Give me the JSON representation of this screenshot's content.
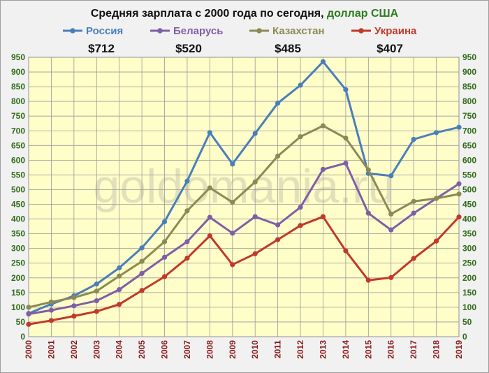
{
  "chart_data": {
    "type": "line",
    "title": "Средняя зарплата с 2000 года по сегодня, ",
    "title_unit": "доллар США",
    "watermark": "goldomania.ru",
    "x": [
      "2000",
      "2001",
      "2002",
      "2003",
      "2004",
      "2005",
      "2006",
      "2007",
      "2008",
      "2009",
      "2010",
      "2011",
      "2012",
      "2013",
      "2014",
      "2015",
      "2016",
      "2017",
      "2018",
      "2019"
    ],
    "ylim": [
      0,
      950
    ],
    "yticks": [
      "0",
      "50",
      "100",
      "150",
      "200",
      "250",
      "300",
      "350",
      "400",
      "450",
      "500",
      "550",
      "600",
      "650",
      "700",
      "750",
      "800",
      "850",
      "900",
      "950"
    ],
    "grid": true,
    "legend_position": "top",
    "series": [
      {
        "name": "Россия",
        "color": "#4a7ebb",
        "latest": "$712",
        "values": [
          79,
          111,
          139,
          179,
          234,
          302,
          391,
          529,
          694,
          587,
          691,
          794,
          855,
          935,
          840,
          555,
          547,
          671,
          694,
          712
        ]
      },
      {
        "name": "Беларусь",
        "color": "#7f5ea8",
        "latest": "$520",
        "values": [
          77,
          90,
          105,
          122,
          160,
          215,
          270,
          323,
          406,
          352,
          408,
          380,
          440,
          569,
          590,
          420,
          363,
          420,
          470,
          520
        ]
      },
      {
        "name": "Казахстан",
        "color": "#8c8a54",
        "latest": "$485",
        "values": [
          100,
          118,
          133,
          155,
          206,
          256,
          323,
          428,
          506,
          457,
          526,
          614,
          680,
          717,
          675,
          567,
          417,
          460,
          470,
          485
        ]
      },
      {
        "name": "Украина",
        "color": "#c0392b",
        "latest": "$407",
        "values": [
          42,
          55,
          70,
          86,
          110,
          157,
          204,
          267,
          343,
          245,
          282,
          330,
          378,
          408,
          292,
          192,
          201,
          266,
          325,
          407
        ]
      }
    ]
  }
}
